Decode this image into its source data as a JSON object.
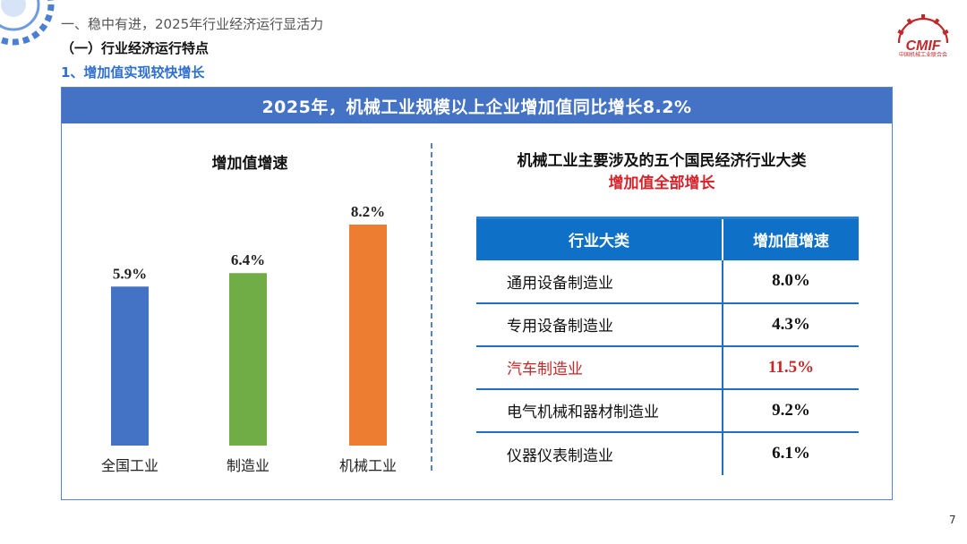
{
  "header": {
    "crumb1": "一、稳中有进，2025年行业经济运行显活力",
    "crumb2": "（一）行业经济运行特点",
    "crumb3": "1、增加值实现较快增长"
  },
  "logo": {
    "text": "CMIF",
    "tagline": "中国机械工业联合会"
  },
  "banner": "2025年，机械工业规模以上企业增加值同比增长8.2%",
  "chart_data": {
    "type": "bar",
    "title": "增加值增速",
    "categories": [
      "全国工业",
      "制造业",
      "机械工业"
    ],
    "values": [
      5.9,
      6.4,
      8.2
    ],
    "value_labels": [
      "5.9%",
      "6.4%",
      "8.2%"
    ],
    "colors": [
      "#4472c4",
      "#70ad47",
      "#ed7d31"
    ],
    "xlabel": "",
    "ylabel": "",
    "ylim": [
      0,
      8.2
    ],
    "grid": false,
    "legend": "none"
  },
  "table": {
    "title": "机械工业主要涉及的五个国民经济行业大类",
    "subtitle": "增加值全部增长",
    "columns": [
      "行业大类",
      "增加值增速"
    ],
    "rows": [
      {
        "name": "通用设备制造业",
        "value": "8.0%"
      },
      {
        "name": "专用设备制造业",
        "value": "4.3%"
      },
      {
        "name": "汽车制造业",
        "value": "11.5%"
      },
      {
        "name": "电气机械和器材制造业",
        "value": "9.2%"
      },
      {
        "name": "仪器仪表制造业",
        "value": "6.1%"
      }
    ],
    "highlight_color": "#c62828"
  },
  "page_number": "7"
}
